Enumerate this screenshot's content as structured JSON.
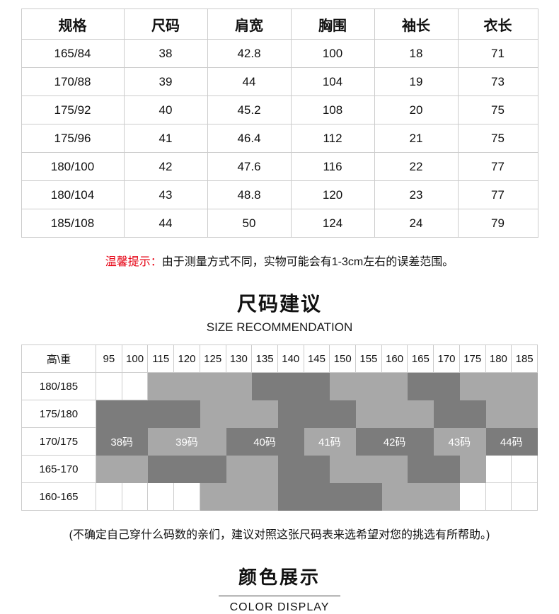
{
  "size_table": {
    "headers": [
      "规格",
      "尺码",
      "肩宽",
      "胸围",
      "袖长",
      "衣长"
    ],
    "rows": [
      [
        "165/84",
        "38",
        "42.8",
        "100",
        "18",
        "71"
      ],
      [
        "170/88",
        "39",
        "44",
        "104",
        "19",
        "73"
      ],
      [
        "175/92",
        "40",
        "45.2",
        "108",
        "20",
        "75"
      ],
      [
        "175/96",
        "41",
        "46.4",
        "112",
        "21",
        "75"
      ],
      [
        "180/100",
        "42",
        "47.6",
        "116",
        "22",
        "77"
      ],
      [
        "180/104",
        "43",
        "48.8",
        "120",
        "23",
        "77"
      ],
      [
        "185/108",
        "44",
        "50",
        "124",
        "24",
        "79"
      ]
    ]
  },
  "tip": {
    "label": "温馨提示：",
    "text": "由于测量方式不同，实物可能会有1-3cm左右的误差范围。"
  },
  "size_recommendation": {
    "title": "尺码建议",
    "subtitle": "SIZE RECOMMENDATION",
    "corner": "高\\重",
    "weights": [
      "95",
      "100",
      "115",
      "120",
      "125",
      "130",
      "135",
      "140",
      "145",
      "150",
      "155",
      "160",
      "165",
      "170",
      "175",
      "180",
      "185"
    ],
    "rows": [
      {
        "height": "180/185",
        "cells": [
          0,
          0,
          1,
          1,
          1,
          1,
          2,
          2,
          2,
          1,
          1,
          1,
          2,
          2,
          1,
          1,
          1
        ]
      },
      {
        "height": "175/180",
        "cells": [
          2,
          2,
          2,
          2,
          1,
          1,
          1,
          2,
          2,
          2,
          1,
          1,
          1,
          2,
          2,
          1,
          1
        ]
      },
      {
        "height": "170/175",
        "groups": [
          {
            "label": "38码",
            "span": 2,
            "shade": 2
          },
          {
            "label": "39码",
            "span": 3,
            "shade": 1
          },
          {
            "label": "40码",
            "span": 3,
            "shade": 2
          },
          {
            "label": "41码",
            "span": 2,
            "shade": 1
          },
          {
            "label": "42码",
            "span": 3,
            "shade": 2
          },
          {
            "label": "43码",
            "span": 2,
            "shade": 1
          },
          {
            "label": "44码",
            "span": 2,
            "shade": 2
          }
        ]
      },
      {
        "height": "165-170",
        "cells": [
          1,
          1,
          2,
          2,
          2,
          1,
          1,
          2,
          2,
          1,
          1,
          1,
          2,
          2,
          1,
          0,
          0
        ]
      },
      {
        "height": "160-165",
        "cells": [
          0,
          0,
          0,
          0,
          1,
          1,
          1,
          2,
          2,
          2,
          2,
          1,
          1,
          1,
          0,
          0,
          0
        ]
      }
    ],
    "note": "(不确定自己穿什么码数的亲们，建议对照这张尺码表来选希望对您的挑选有所帮助。)"
  },
  "color_section": {
    "title": "颜色展示",
    "subtitle": "COLOR DISPLAY"
  },
  "colors": {
    "shade_light": "#a8a8a8",
    "shade_dark": "#7c7c7c",
    "tip_red": "#e60012",
    "border": "#cccccc"
  }
}
